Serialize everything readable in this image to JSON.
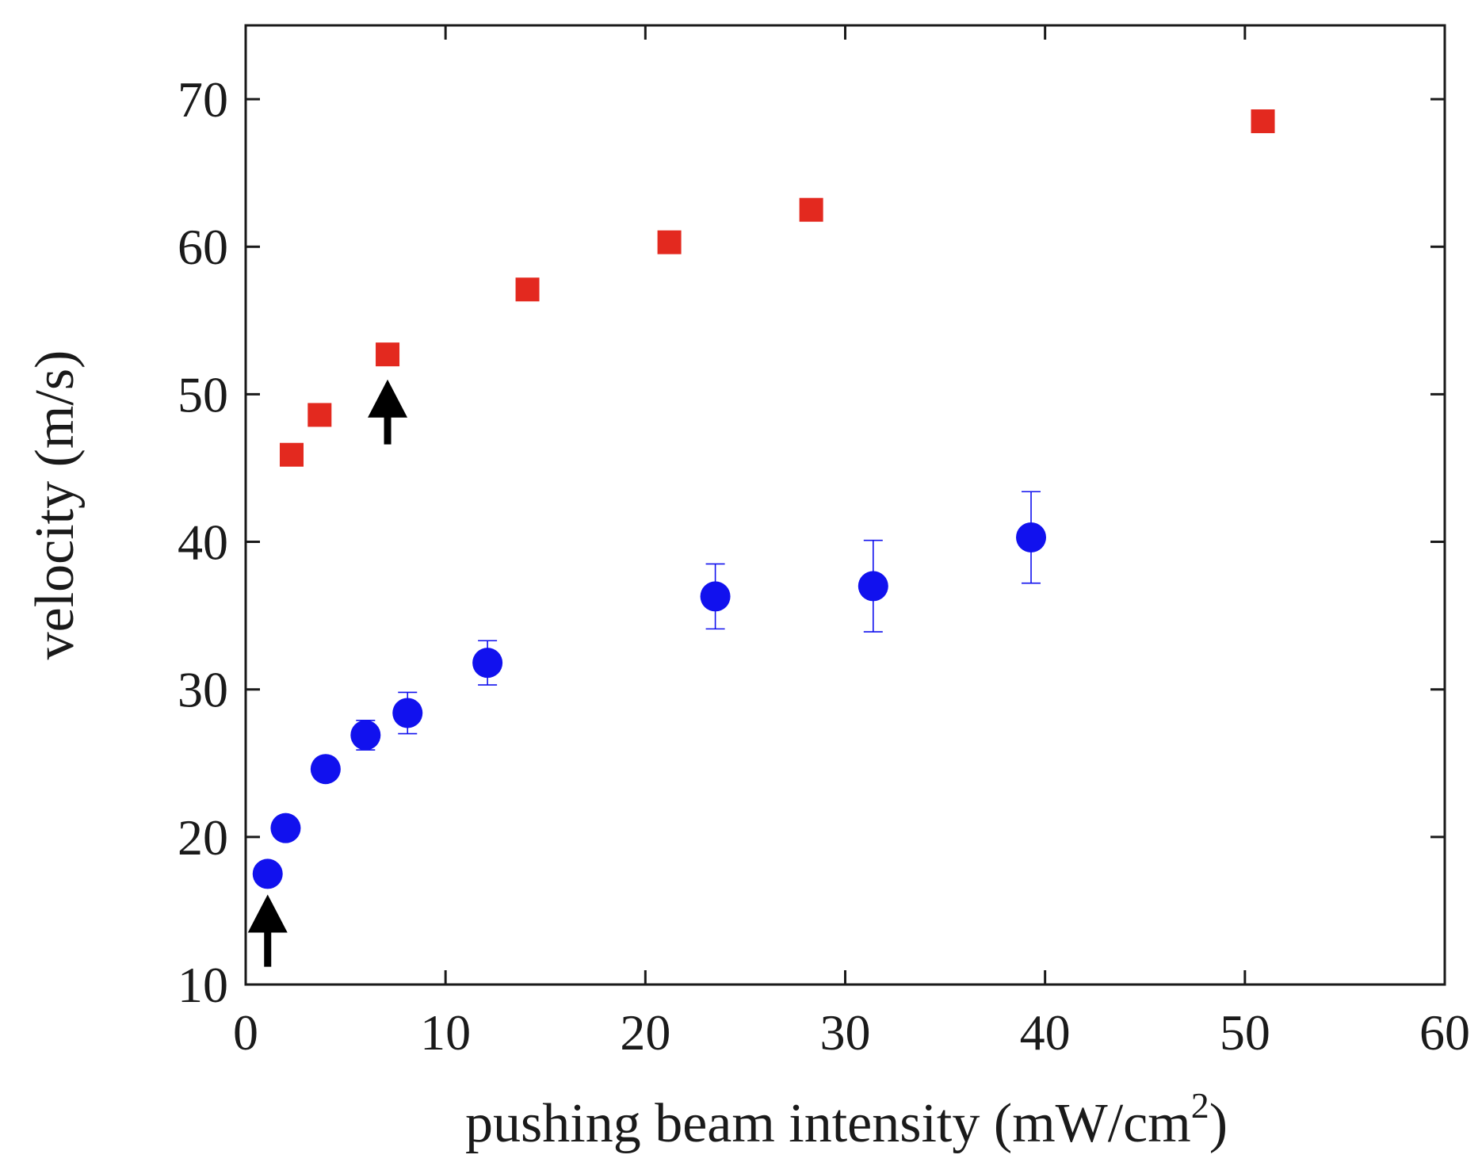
{
  "chart_data": {
    "type": "scatter",
    "title": "",
    "xlabel": "pushing beam intensity (mW/cm",
    "xlabel_superscript": "2",
    "xlabel_suffix": ")",
    "ylabel": "velocity (m/s)",
    "xlim": [
      0,
      60
    ],
    "ylim": [
      10,
      75
    ],
    "x_ticks": [
      0,
      10,
      20,
      30,
      40,
      50,
      60
    ],
    "x_tick_labels": [
      "0",
      "10",
      "20",
      "30",
      "40",
      "50",
      "60"
    ],
    "y_ticks": [
      10,
      20,
      30,
      40,
      50,
      60,
      70
    ],
    "y_tick_labels": [
      "10",
      "20",
      "30",
      "40",
      "50",
      "60",
      "70"
    ],
    "grid": false,
    "series": [
      {
        "marker": "square",
        "color": "#e3291f",
        "x": [
          2.3,
          3.7,
          7.1,
          14.1,
          21.2,
          28.3,
          50.9
        ],
        "y": [
          45.9,
          48.6,
          52.7,
          57.1,
          60.3,
          62.5,
          68.5
        ]
      },
      {
        "marker": "circle",
        "color": "#1111ee",
        "x": [
          1.1,
          2.0,
          4.0,
          6.0,
          8.1,
          12.1,
          23.5,
          31.4,
          39.3
        ],
        "y": [
          17.5,
          20.6,
          24.6,
          26.9,
          28.4,
          31.8,
          36.3,
          37.0,
          40.3
        ],
        "err": [
          0,
          0,
          0,
          1.0,
          1.4,
          1.5,
          2.2,
          3.1,
          3.1
        ]
      }
    ],
    "annotations": [
      {
        "type": "arrow",
        "direction": "up",
        "x": 1.1,
        "y_tail": 11.2,
        "y_head": 16.1
      },
      {
        "type": "arrow",
        "direction": "up",
        "x": 7.1,
        "y_tail": 46.6,
        "y_head": 51.0
      }
    ]
  }
}
